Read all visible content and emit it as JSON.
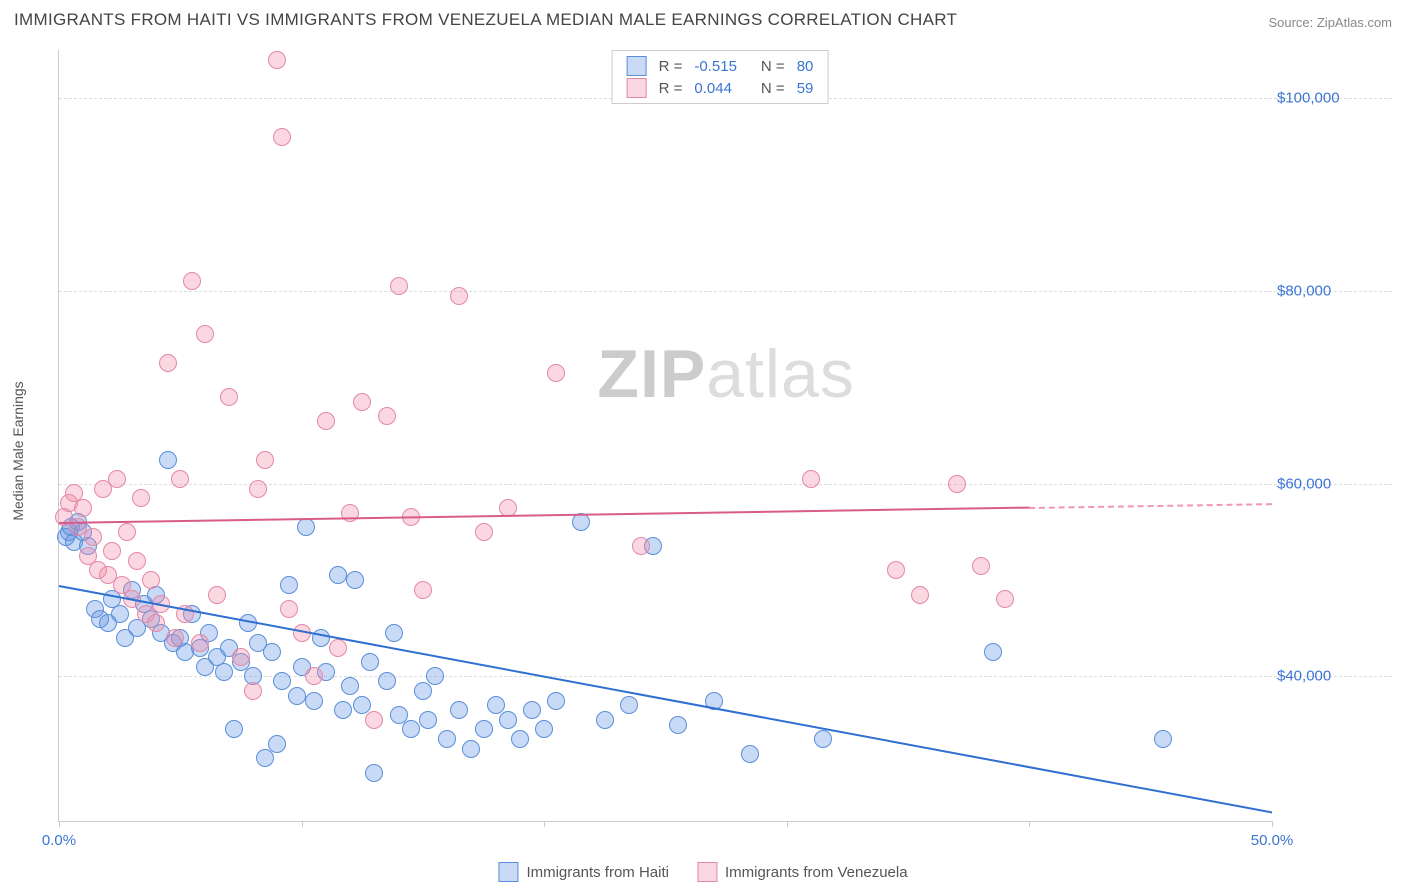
{
  "title": "IMMIGRANTS FROM HAITI VS IMMIGRANTS FROM VENEZUELA MEDIAN MALE EARNINGS CORRELATION CHART",
  "source": "Source: ZipAtlas.com",
  "watermark_prefix": "ZIP",
  "watermark_suffix": "atlas",
  "y_axis_label": "Median Male Earnings",
  "chart": {
    "type": "scatter",
    "xlim": [
      0,
      50
    ],
    "ylim": [
      25000,
      105000
    ],
    "x_ticks": [
      0,
      10,
      20,
      30,
      40,
      50
    ],
    "x_tick_labels": {
      "0": "0.0%",
      "50": "50.0%"
    },
    "y_ticks": [
      40000,
      60000,
      80000,
      100000
    ],
    "y_tick_labels": {
      "40000": "$40,000",
      "60000": "$60,000",
      "80000": "$80,000",
      "100000": "$100,000"
    },
    "grid_color": "#dddddd",
    "axis_color": "#cccccc",
    "background": "#ffffff",
    "series": [
      {
        "name": "Immigrants from Haiti",
        "fill": "rgba(100,150,230,0.35)",
        "stroke": "#5a8fd8",
        "line_color": "#2f6fd0",
        "R_label": "R =",
        "R": "-0.515",
        "N_label": "N =",
        "N": "80",
        "trend": {
          "x1": 0,
          "y1": 49500,
          "x2": 50,
          "y2": 26000,
          "solid_until_x": 50
        },
        "points": [
          [
            0.3,
            54500
          ],
          [
            0.4,
            55000
          ],
          [
            0.5,
            55500
          ],
          [
            0.6,
            54000
          ],
          [
            0.8,
            56000
          ],
          [
            1.0,
            55000
          ],
          [
            1.2,
            53500
          ],
          [
            1.5,
            47000
          ],
          [
            1.7,
            46000
          ],
          [
            2.0,
            45500
          ],
          [
            2.2,
            48000
          ],
          [
            2.5,
            46500
          ],
          [
            2.7,
            44000
          ],
          [
            3.0,
            49000
          ],
          [
            3.2,
            45000
          ],
          [
            3.5,
            47500
          ],
          [
            3.8,
            46000
          ],
          [
            4.0,
            48500
          ],
          [
            4.2,
            44500
          ],
          [
            4.5,
            62500
          ],
          [
            4.7,
            43500
          ],
          [
            5.0,
            44000
          ],
          [
            5.2,
            42500
          ],
          [
            5.5,
            46500
          ],
          [
            5.8,
            43000
          ],
          [
            6.0,
            41000
          ],
          [
            6.2,
            44500
          ],
          [
            6.5,
            42000
          ],
          [
            6.8,
            40500
          ],
          [
            7.0,
            43000
          ],
          [
            7.2,
            34500
          ],
          [
            7.5,
            41500
          ],
          [
            7.8,
            45500
          ],
          [
            8.0,
            40000
          ],
          [
            8.2,
            43500
          ],
          [
            8.5,
            31500
          ],
          [
            8.8,
            42500
          ],
          [
            9.0,
            33000
          ],
          [
            9.2,
            39500
          ],
          [
            9.5,
            49500
          ],
          [
            9.8,
            38000
          ],
          [
            10.0,
            41000
          ],
          [
            10.2,
            55500
          ],
          [
            10.5,
            37500
          ],
          [
            10.8,
            44000
          ],
          [
            11.0,
            40500
          ],
          [
            11.5,
            50500
          ],
          [
            11.7,
            36500
          ],
          [
            12.0,
            39000
          ],
          [
            12.2,
            50000
          ],
          [
            12.5,
            37000
          ],
          [
            12.8,
            41500
          ],
          [
            13.0,
            30000
          ],
          [
            13.5,
            39500
          ],
          [
            13.8,
            44500
          ],
          [
            14.0,
            36000
          ],
          [
            14.5,
            34500
          ],
          [
            15.0,
            38500
          ],
          [
            15.2,
            35500
          ],
          [
            15.5,
            40000
          ],
          [
            16.0,
            33500
          ],
          [
            16.5,
            36500
          ],
          [
            17.0,
            32500
          ],
          [
            17.5,
            34500
          ],
          [
            18.0,
            37000
          ],
          [
            18.5,
            35500
          ],
          [
            19.0,
            33500
          ],
          [
            19.5,
            36500
          ],
          [
            20.0,
            34500
          ],
          [
            20.5,
            37500
          ],
          [
            21.5,
            56000
          ],
          [
            22.5,
            35500
          ],
          [
            23.5,
            37000
          ],
          [
            24.5,
            53500
          ],
          [
            25.5,
            35000
          ],
          [
            27.0,
            37500
          ],
          [
            28.5,
            32000
          ],
          [
            31.5,
            33500
          ],
          [
            38.5,
            42500
          ],
          [
            45.5,
            33500
          ]
        ]
      },
      {
        "name": "Immigrants from Venezuela",
        "fill": "rgba(240,140,170,0.35)",
        "stroke": "#e389a8",
        "line_color": "#d95b8a",
        "R_label": "R =",
        "R": "0.044",
        "N_label": "N =",
        "N": "59",
        "trend": {
          "x1": 0,
          "y1": 56000,
          "x2": 50,
          "y2": 58000,
          "solid_until_x": 40
        },
        "points": [
          [
            0.2,
            56500
          ],
          [
            0.4,
            58000
          ],
          [
            0.6,
            59000
          ],
          [
            0.8,
            55500
          ],
          [
            1.0,
            57500
          ],
          [
            1.2,
            52500
          ],
          [
            1.4,
            54500
          ],
          [
            1.6,
            51000
          ],
          [
            1.8,
            59500
          ],
          [
            2.0,
            50500
          ],
          [
            2.2,
            53000
          ],
          [
            2.4,
            60500
          ],
          [
            2.6,
            49500
          ],
          [
            2.8,
            55000
          ],
          [
            3.0,
            48000
          ],
          [
            3.2,
            52000
          ],
          [
            3.4,
            58500
          ],
          [
            3.6,
            46500
          ],
          [
            3.8,
            50000
          ],
          [
            4.0,
            45500
          ],
          [
            4.2,
            47500
          ],
          [
            4.5,
            72500
          ],
          [
            4.8,
            44000
          ],
          [
            5.0,
            60500
          ],
          [
            5.2,
            46500
          ],
          [
            5.5,
            81000
          ],
          [
            5.8,
            43500
          ],
          [
            6.0,
            75500
          ],
          [
            6.5,
            48500
          ],
          [
            7.0,
            69000
          ],
          [
            7.5,
            42000
          ],
          [
            8.0,
            38500
          ],
          [
            8.2,
            59500
          ],
          [
            8.5,
            62500
          ],
          [
            9.0,
            104000
          ],
          [
            9.5,
            47000
          ],
          [
            10.0,
            44500
          ],
          [
            10.5,
            40000
          ],
          [
            9.2,
            96000
          ],
          [
            11.0,
            66500
          ],
          [
            11.5,
            43000
          ],
          [
            12.0,
            57000
          ],
          [
            12.5,
            68500
          ],
          [
            13.0,
            35500
          ],
          [
            13.5,
            67000
          ],
          [
            14.0,
            80500
          ],
          [
            14.5,
            56500
          ],
          [
            15.0,
            49000
          ],
          [
            16.5,
            79500
          ],
          [
            17.5,
            55000
          ],
          [
            18.5,
            57500
          ],
          [
            20.5,
            71500
          ],
          [
            24.0,
            53500
          ],
          [
            31.0,
            60500
          ],
          [
            34.5,
            51000
          ],
          [
            35.5,
            48500
          ],
          [
            37.0,
            60000
          ],
          [
            38.0,
            51500
          ],
          [
            39.0,
            48000
          ]
        ]
      }
    ]
  },
  "colors": {
    "tick_text": "#3b74d4",
    "body_text": "#555555"
  }
}
